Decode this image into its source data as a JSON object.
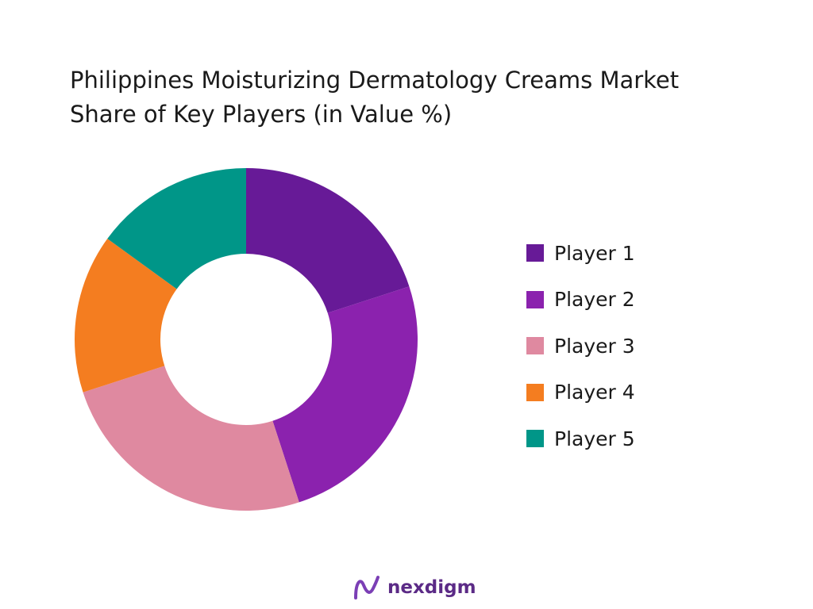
{
  "chart_data": {
    "type": "pie",
    "donut": true,
    "title": "Philippines Moisturizing Dermatology Creams Market\nShare of Key Players (in Value %)",
    "categories": [
      "Player 1",
      "Player 2",
      "Player 3",
      "Player 4",
      "Player 5"
    ],
    "values": [
      20,
      25,
      25,
      15,
      15
    ],
    "colors": [
      "#671A97",
      "#8B22AE",
      "#DF89A0",
      "#F47D20",
      "#009688"
    ],
    "legend_position": "right"
  },
  "brand": {
    "name": "nexdigm"
  }
}
